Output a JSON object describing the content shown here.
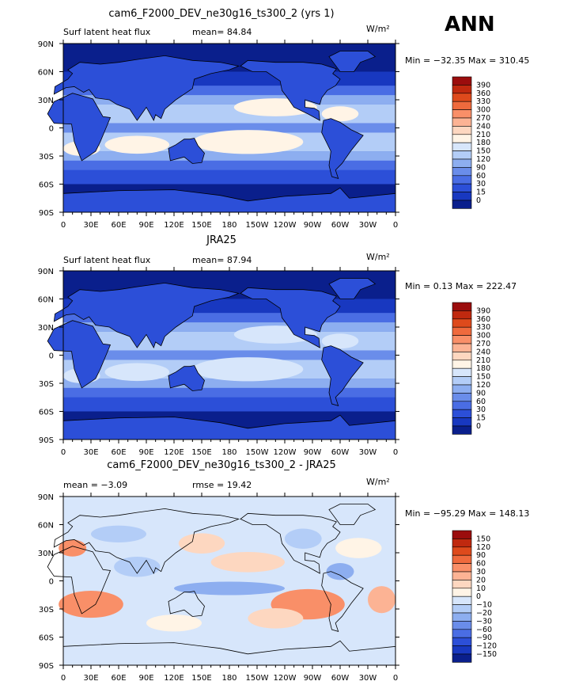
{
  "header": {
    "season": "ANN"
  },
  "panels": [
    {
      "title": "cam6_F2000_DEV_ne30g16_ts300_2 (yrs 1)",
      "variable": "Surf latent heat flux",
      "stat1": "mean=  84.84",
      "stat2": "",
      "units": "W/m²",
      "minmax": "Min = −32.35 Max = 310.45",
      "colorbar_labels": [
        "390",
        "360",
        "330",
        "300",
        "270",
        "240",
        "210",
        "180",
        "150",
        "120",
        "90",
        "60",
        "30",
        "15",
        "0"
      ],
      "colorbar_colors": [
        "#9b0d0d",
        "#c0290f",
        "#de4a1c",
        "#ef6a3d",
        "#f98f68",
        "#fcb394",
        "#fdd7c0",
        "#fff4e6",
        "#d7e6fb",
        "#b3cdf7",
        "#8daef0",
        "#6a8dea",
        "#4a6de4",
        "#2c4fd8",
        "#1838c0",
        "#0a1f8c"
      ],
      "mean_color": "#3a62db",
      "map_palette": [
        "#0a1f8c",
        "#1838c0",
        "#2c4fd8",
        "#4a6de4",
        "#6a8dea",
        "#8daef0",
        "#b3cdf7",
        "#d7e6fb",
        "#fff4e6",
        "#fdd7c0",
        "#f98f68"
      ]
    },
    {
      "title": "JRA25",
      "variable": "Surf latent heat flux",
      "stat1": "mean=  87.94",
      "stat2": "",
      "units": "W/m²",
      "minmax": "Min =   0.13 Max = 222.47",
      "colorbar_labels": [
        "390",
        "360",
        "330",
        "300",
        "270",
        "240",
        "210",
        "180",
        "150",
        "120",
        "90",
        "60",
        "30",
        "15",
        "0"
      ],
      "colorbar_colors": [
        "#9b0d0d",
        "#c0290f",
        "#de4a1c",
        "#ef6a3d",
        "#f98f68",
        "#fcb394",
        "#fdd7c0",
        "#fff4e6",
        "#d7e6fb",
        "#b3cdf7",
        "#8daef0",
        "#6a8dea",
        "#4a6de4",
        "#2c4fd8",
        "#1838c0",
        "#0a1f8c"
      ],
      "mean_color": "#3a62db",
      "map_palette": [
        "#0a1f8c",
        "#1838c0",
        "#2c4fd8",
        "#4a6de4",
        "#6a8dea",
        "#8daef0",
        "#b3cdf7",
        "#d7e6fb"
      ]
    },
    {
      "title": "cam6_F2000_DEV_ne30g16_ts300_2 - JRA25",
      "variable": "",
      "stat1": "mean =   −3.09",
      "stat2": "rmse =   19.42",
      "units": "W/m²",
      "minmax": "Min = −95.29 Max = 148.13",
      "colorbar_labels": [
        "150",
        "120",
        "90",
        "60",
        "30",
        "20",
        "10",
        "0",
        "−10",
        "−20",
        "−30",
        "−60",
        "−90",
        "−120",
        "−150"
      ],
      "colorbar_colors": [
        "#9b0d0d",
        "#c0290f",
        "#de4a1c",
        "#ef6a3d",
        "#f98f68",
        "#fcb394",
        "#fdd7c0",
        "#fff4e6",
        "#d7e6fb",
        "#b3cdf7",
        "#8daef0",
        "#6a8dea",
        "#4a6de4",
        "#2c4fd8",
        "#1838c0",
        "#0a1f8c"
      ],
      "mean_color": "#d7e6fb",
      "map_palette": [
        "#4a6de4",
        "#8daef0",
        "#b3cdf7",
        "#d7e6fb",
        "#fff4e6",
        "#fdd7c0",
        "#fcb394",
        "#f98f68",
        "#ef6a3d"
      ]
    }
  ],
  "axes": {
    "lat_labels": [
      "90N",
      "60N",
      "30N",
      "0",
      "30S",
      "60S",
      "90S"
    ],
    "lon_labels": [
      "0",
      "30E",
      "60E",
      "90E",
      "120E",
      "150E",
      "180",
      "150W",
      "120W",
      "90W",
      "60W",
      "30W",
      "0"
    ]
  }
}
